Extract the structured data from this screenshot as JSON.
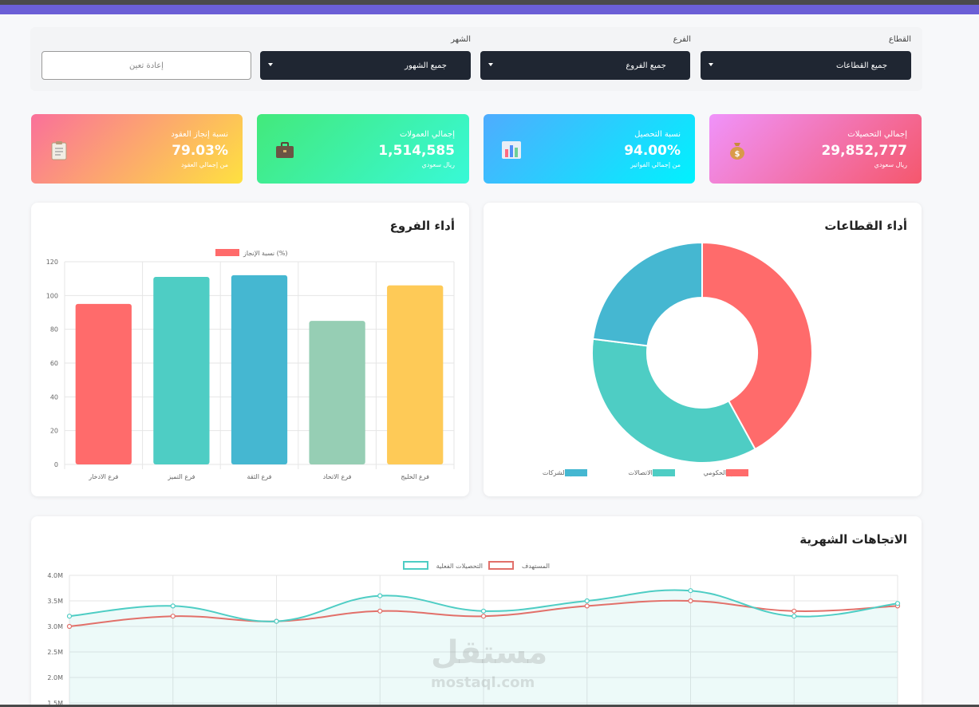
{
  "filters": {
    "sector_label": "القطاع",
    "sector_value": "جميع القطاعات",
    "branch_label": "الفرع",
    "branch_value": "جميع الفروع",
    "month_label": "الشهر",
    "month_value": "جميع الشهور",
    "reset_label": "إعادة تعين"
  },
  "kpis": [
    {
      "title": "إجمالي التحصيلات",
      "value": "29,852,777",
      "sub": "ريال سعودي",
      "icon": "money-bag-icon",
      "colors": [
        "#f093fb",
        "#f5576c"
      ]
    },
    {
      "title": "نسبة التحصيل",
      "value": "94.00%",
      "sub": "من إجمالي الفواتير",
      "icon": "bar-chart-icon",
      "colors": [
        "#4facfe",
        "#00f2fe"
      ]
    },
    {
      "title": "إجمالي العمولات",
      "value": "1,514,585",
      "sub": "ريال سعودي",
      "icon": "briefcase-icon",
      "colors": [
        "#43e97b",
        "#38f9d7"
      ]
    },
    {
      "title": "نسبة إنجاز العقود",
      "value": "79.03%",
      "sub": "من إجمالي العقود",
      "icon": "clipboard-icon",
      "colors": [
        "#fa709a",
        "#fee140"
      ]
    }
  ],
  "branches_title": "أداء الفروع",
  "sectors_title": "أداء القطاعات",
  "trends_title": "الاتجاهات الشهرية",
  "watermark": {
    "brand": "مستقل",
    "url": "mostaql.com"
  },
  "chart_data": [
    {
      "type": "bar",
      "title": "أداء الفروع",
      "categories": [
        "فرع الادخار",
        "فرع التميز",
        "فرع الثقة",
        "فرع الاتحاد",
        "فرع الخليج"
      ],
      "series": [
        {
          "name": "نسبة الإنجاز (%)",
          "values": [
            95,
            111,
            112,
            85,
            106
          ]
        }
      ],
      "colors": [
        "#ff6b6b",
        "#4ecdc4",
        "#45b7d1",
        "#96ceb4",
        "#feca57"
      ],
      "ylim": [
        0,
        120
      ],
      "yticks": [
        0,
        20,
        40,
        60,
        80,
        100,
        120
      ],
      "legend": "top"
    },
    {
      "type": "pie",
      "title": "أداء القطاعات",
      "labels": [
        "القطاع الحكومي",
        "قطاع الاتصالات",
        "قطاع الشركات"
      ],
      "values": [
        42,
        35,
        23
      ],
      "colors": [
        "#ff6b6b",
        "#4ecdc4",
        "#45b7d1"
      ],
      "legend": "bottom"
    },
    {
      "type": "line",
      "title": "الاتجاهات الشهرية",
      "series": [
        {
          "name": "المستهدف",
          "color": "#e2706a",
          "values": [
            3.0,
            3.2,
            3.1,
            3.3,
            3.2,
            3.4,
            3.5,
            3.3,
            3.4
          ]
        },
        {
          "name": "التحصيلات الفعلية",
          "color": "#4ecdc4",
          "values": [
            3.2,
            3.4,
            3.1,
            3.6,
            3.3,
            3.5,
            3.7,
            3.2,
            3.45
          ]
        }
      ],
      "yticks": [
        "1.5M",
        "2.0M",
        "2.5M",
        "3.0M",
        "3.5M",
        "4.0M"
      ],
      "ylim": [
        1.5,
        4.0
      ],
      "legend": "top"
    }
  ]
}
